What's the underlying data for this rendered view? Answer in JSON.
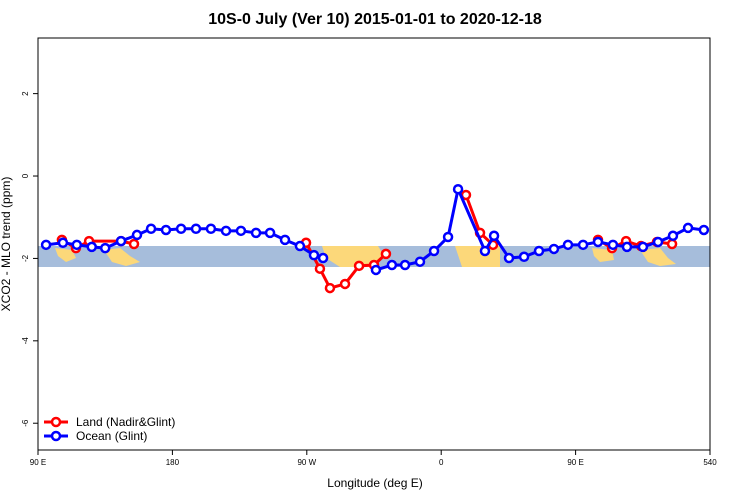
{
  "chart_data": {
    "type": "line",
    "title": "10S-0 July (Ver 10)   2015-01-01 to 2020-12-18",
    "x_label": "Longitude (deg E)",
    "y_label": "XCO2 - MLO trend (ppm)",
    "xlim": [
      90,
      540
    ],
    "ylim": [
      -6.65,
      3.35
    ],
    "xticks": [
      {
        "value": 90,
        "label": "90 E"
      },
      180,
      {
        "value": 270,
        "label": "90 W"
      },
      {
        "value": 360,
        "label": "0"
      },
      {
        "value": 450,
        "label": "90 E"
      },
      540
    ],
    "yticks": [
      -6,
      -4,
      -2,
      0,
      2
    ],
    "legend": "bottom-left",
    "series": [
      {
        "name": "Land (Nadir&Glint)",
        "color": "#ff0000",
        "x": [
          106,
          115.4,
          124.2,
          145.6,
          154.3,
          null,
          269.5,
          278.8,
          285.5,
          295.6,
          305,
          315,
          323,
          null,
          376.6,
          386,
          394.7,
          null,
          465,
          474.4,
          483.8,
          493.8,
          504.5,
          514.6
        ],
        "values": [
          -1.55,
          -1.75,
          -1.58,
          -1.58,
          -1.65,
          null,
          -1.62,
          -2.25,
          -2.72,
          -2.62,
          -2.18,
          -2.16,
          -1.89,
          null,
          -0.46,
          -1.38,
          -1.67,
          null,
          -1.55,
          -1.75,
          -1.58,
          -1.7,
          -1.6,
          -1.65
        ]
      },
      {
        "name": "Ocean (Glint)",
        "color": "#0000ff",
        "x": [
          95.4,
          106.7,
          116,
          126,
          135,
          145.6,
          156.3,
          165.7,
          175.7,
          185.8,
          195.8,
          205.8,
          215.9,
          225.9,
          236,
          245.4,
          255.4,
          265.4,
          274.8,
          280.9,
          null,
          316.3,
          327,
          335.8,
          345.8,
          355.2,
          364.6,
          371.3,
          389.3,
          395.4,
          405.4,
          415.5,
          425.5,
          435.5,
          444.9,
          455,
          465,
          475,
          484.4,
          495.1,
          505.2,
          515.2,
          525.3,
          535.9
        ],
        "values": [
          -1.67,
          -1.62,
          -1.67,
          -1.72,
          -1.75,
          -1.58,
          -1.43,
          -1.28,
          -1.31,
          -1.28,
          -1.28,
          -1.28,
          -1.33,
          -1.33,
          -1.38,
          -1.38,
          -1.55,
          -1.7,
          -1.92,
          -1.99,
          null,
          -2.28,
          -2.16,
          -2.16,
          -2.08,
          -1.82,
          -1.48,
          -0.32,
          -1.82,
          -1.45,
          -1.99,
          -1.96,
          -1.82,
          -1.77,
          -1.67,
          -1.67,
          -1.6,
          -1.67,
          -1.72,
          -1.72,
          -1.6,
          -1.45,
          -1.26,
          -1.31
        ]
      }
    ]
  }
}
